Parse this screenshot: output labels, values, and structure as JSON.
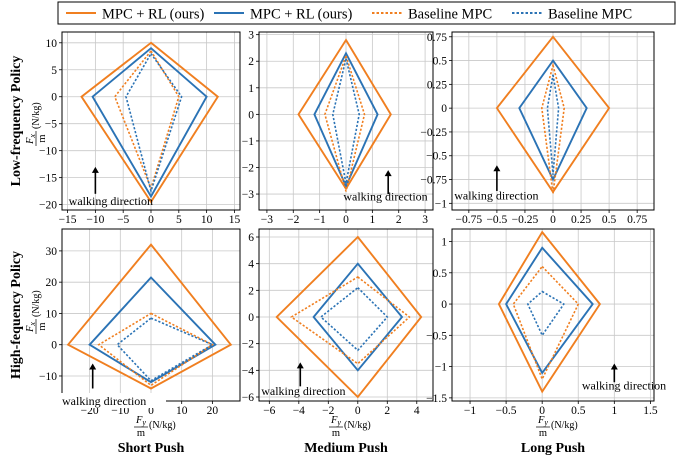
{
  "colors": {
    "orange": "#f07f20",
    "blue": "#2b73b5",
    "grid": "#c8c8c8",
    "text": "#000000"
  },
  "legend": [
    {
      "label": "MPC + RL (ours)",
      "color": "#f07f20",
      "dash": false
    },
    {
      "label": "MPC + RL (ours)",
      "color": "#2b73b5",
      "dash": false
    },
    {
      "label": "Baseline MPC",
      "color": "#f07f20",
      "dash": true
    },
    {
      "label": "Baseline MPC",
      "color": "#2b73b5",
      "dash": true
    }
  ],
  "row_labels": [
    "Low-frequency Policy",
    "High-fequency Policy"
  ],
  "col_labels": [
    "Short Push",
    "Medium Push",
    "Long Push"
  ],
  "annotation_text": "walking direction",
  "ylabel_text": {
    "num": "F",
    "sub": "x",
    "den": "m",
    "unit": "(N/kg)"
  },
  "xlabel_text": {
    "num": "F",
    "sub": "y",
    "den": "m",
    "unit": "(N/kg)"
  },
  "chart_data": [
    {
      "type": "line",
      "row": 0,
      "col": 0,
      "xlim": [
        -16,
        16
      ],
      "ylim": [
        -21,
        12
      ],
      "xticks": [
        -15,
        -10,
        -5,
        0,
        5,
        10,
        15
      ],
      "yticks": [
        -20,
        -15,
        -10,
        -5,
        0,
        5,
        10
      ],
      "arrow": {
        "x": -10,
        "y_start": -18,
        "y_end": -13
      },
      "label": {
        "x": -14.8,
        "y": -19.3,
        "anchor": "start"
      },
      "series": [
        {
          "color": "orange",
          "dash": false,
          "points": [
            [
              0,
              10
            ],
            [
              12,
              0
            ],
            [
              0,
              -19.5
            ],
            [
              -12.5,
              0
            ]
          ]
        },
        {
          "color": "blue",
          "dash": false,
          "points": [
            [
              0,
              9
            ],
            [
              10,
              0
            ],
            [
              0,
              -18.5
            ],
            [
              -10.5,
              0
            ]
          ]
        },
        {
          "color": "orange",
          "dash": true,
          "points": [
            [
              0,
              8.5
            ],
            [
              5,
              0
            ],
            [
              0,
              -17
            ],
            [
              -6.5,
              0
            ]
          ]
        },
        {
          "color": "blue",
          "dash": true,
          "points": [
            [
              0,
              8
            ],
            [
              5.5,
              0
            ],
            [
              0,
              -17.5
            ],
            [
              -4.5,
              0
            ]
          ]
        }
      ]
    },
    {
      "type": "line",
      "row": 0,
      "col": 1,
      "xlim": [
        -3.3,
        3.3
      ],
      "ylim": [
        -3.6,
        3.1
      ],
      "xticks": [
        -3,
        -2,
        -1,
        0,
        1,
        2,
        3
      ],
      "yticks": [
        -3,
        -2,
        -1,
        0,
        1,
        2,
        3
      ],
      "arrow": {
        "x": 1.6,
        "y_start": -3.0,
        "y_end": -2.1
      },
      "label": {
        "x": -0.1,
        "y": -3.1,
        "anchor": "start"
      },
      "series": [
        {
          "color": "orange",
          "dash": false,
          "points": [
            [
              0,
              2.8
            ],
            [
              1.7,
              0
            ],
            [
              0,
              -2.8
            ],
            [
              -1.8,
              0
            ]
          ]
        },
        {
          "color": "blue",
          "dash": false,
          "points": [
            [
              0,
              2.3
            ],
            [
              1.2,
              0
            ],
            [
              0,
              -2.7
            ],
            [
              -1.2,
              0
            ]
          ]
        },
        {
          "color": "orange",
          "dash": true,
          "points": [
            [
              0,
              2.2
            ],
            [
              0.7,
              0
            ],
            [
              0,
              -2.9
            ],
            [
              -0.8,
              0
            ]
          ]
        },
        {
          "color": "blue",
          "dash": true,
          "points": [
            [
              0,
              2.1
            ],
            [
              0.5,
              0
            ],
            [
              0,
              -2.6
            ],
            [
              -0.5,
              0
            ]
          ]
        }
      ]
    },
    {
      "type": "line",
      "row": 0,
      "col": 2,
      "xlim": [
        -0.9,
        0.9
      ],
      "ylim": [
        -1.07,
        0.8
      ],
      "xticks": [
        -0.75,
        -0.5,
        -0.25,
        0,
        0.25,
        0.5,
        0.75
      ],
      "yticks": [
        -1.0,
        -0.75,
        -0.5,
        -0.25,
        0,
        0.25,
        0.5,
        0.75
      ],
      "arrow": {
        "x": -0.5,
        "y_start": -0.87,
        "y_end": -0.6
      },
      "label": {
        "x": -0.88,
        "y": -0.92,
        "anchor": "start"
      },
      "series": [
        {
          "color": "orange",
          "dash": false,
          "points": [
            [
              0,
              0.75
            ],
            [
              0.5,
              0
            ],
            [
              0,
              -0.88
            ],
            [
              -0.5,
              0
            ]
          ]
        },
        {
          "color": "blue",
          "dash": false,
          "points": [
            [
              0,
              0.5
            ],
            [
              0.3,
              0
            ],
            [
              0,
              -0.75
            ],
            [
              -0.3,
              0
            ]
          ]
        },
        {
          "color": "orange",
          "dash": true,
          "points": [
            [
              0,
              0.45
            ],
            [
              0.1,
              0
            ],
            [
              0,
              -0.9
            ],
            [
              -0.1,
              0
            ]
          ]
        },
        {
          "color": "blue",
          "dash": true,
          "points": [
            [
              0,
              0.35
            ],
            [
              0.05,
              0
            ],
            [
              0,
              -0.7
            ],
            [
              -0.05,
              0
            ]
          ]
        }
      ]
    },
    {
      "type": "line",
      "row": 1,
      "col": 0,
      "xlim": [
        -29,
        29
      ],
      "ylim": [
        -18,
        37
      ],
      "xticks": [
        -20,
        -10,
        0,
        10,
        20
      ],
      "yticks": [
        -10,
        0,
        10,
        20,
        30
      ],
      "arrow": {
        "x": -19,
        "y_start": -14,
        "y_end": -6
      },
      "label": null,
      "series": [
        {
          "color": "orange",
          "dash": false,
          "points": [
            [
              0,
              32
            ],
            [
              26,
              0
            ],
            [
              0,
              -14
            ],
            [
              -27,
              0
            ]
          ]
        },
        {
          "color": "blue",
          "dash": false,
          "points": [
            [
              0,
              21.5
            ],
            [
              21,
              0
            ],
            [
              0,
              -12
            ],
            [
              -20,
              0
            ]
          ]
        },
        {
          "color": "orange",
          "dash": true,
          "points": [
            [
              0,
              10
            ],
            [
              20,
              0
            ],
            [
              0,
              -13
            ],
            [
              -17,
              0
            ]
          ]
        },
        {
          "color": "blue",
          "dash": true,
          "points": [
            [
              0,
              8.5
            ],
            [
              20,
              0
            ],
            [
              0,
              -11.5
            ],
            [
              -11,
              0
            ]
          ]
        }
      ]
    },
    {
      "type": "line",
      "row": 1,
      "col": 1,
      "xlim": [
        -6.7,
        5.1
      ],
      "ylim": [
        -6.3,
        6.6
      ],
      "xticks": [
        -6,
        -4,
        -2,
        0,
        2,
        4
      ],
      "yticks": [
        -6,
        -4,
        -2,
        0,
        2,
        4,
        6
      ],
      "arrow": {
        "x": -3.9,
        "y_start": -5.2,
        "y_end": -3.4
      },
      "label": {
        "x": -6.55,
        "y": -5.55,
        "anchor": "start"
      },
      "series": [
        {
          "color": "orange",
          "dash": false,
          "points": [
            [
              0,
              6
            ],
            [
              4.3,
              0
            ],
            [
              0,
              -6
            ],
            [
              -5.5,
              0
            ]
          ]
        },
        {
          "color": "blue",
          "dash": false,
          "points": [
            [
              0,
              4
            ],
            [
              3,
              0
            ],
            [
              0,
              -4
            ],
            [
              -3,
              0
            ]
          ]
        },
        {
          "color": "orange",
          "dash": true,
          "points": [
            [
              0,
              3
            ],
            [
              3.5,
              0
            ],
            [
              0,
              -3.5
            ],
            [
              -4.5,
              0
            ]
          ]
        },
        {
          "color": "blue",
          "dash": true,
          "points": [
            [
              0,
              2.2
            ],
            [
              2,
              0
            ],
            [
              0,
              -2.5
            ],
            [
              -2.5,
              0
            ]
          ]
        }
      ]
    },
    {
      "type": "line",
      "row": 1,
      "col": 2,
      "xlim": [
        -1.25,
        1.55
      ],
      "ylim": [
        -1.55,
        1.2
      ],
      "xticks": [
        -1,
        -0.5,
        0,
        0.5,
        1,
        1.5
      ],
      "yticks": [
        -1.5,
        -1.0,
        -0.5,
        0,
        0.5,
        1.0
      ],
      "arrow": {
        "x": 1.0,
        "y_start": -1.25,
        "y_end": -0.95
      },
      "label": {
        "x": 0.55,
        "y": -1.3,
        "anchor": "start"
      },
      "series": [
        {
          "color": "orange",
          "dash": false,
          "points": [
            [
              0,
              1.15
            ],
            [
              0.8,
              0
            ],
            [
              0,
              -1.4
            ],
            [
              -0.6,
              0
            ]
          ]
        },
        {
          "color": "blue",
          "dash": false,
          "points": [
            [
              0,
              0.9
            ],
            [
              0.7,
              0
            ],
            [
              0,
              -1.1
            ],
            [
              -0.5,
              0
            ]
          ]
        },
        {
          "color": "orange",
          "dash": true,
          "points": [
            [
              0,
              0.6
            ],
            [
              0.5,
              0
            ],
            [
              0,
              -1.2
            ],
            [
              -0.4,
              0
            ]
          ]
        },
        {
          "color": "blue",
          "dash": true,
          "points": [
            [
              0,
              0.2
            ],
            [
              0.3,
              0
            ],
            [
              0,
              -0.5
            ],
            [
              -0.2,
              0
            ]
          ]
        }
      ]
    }
  ]
}
